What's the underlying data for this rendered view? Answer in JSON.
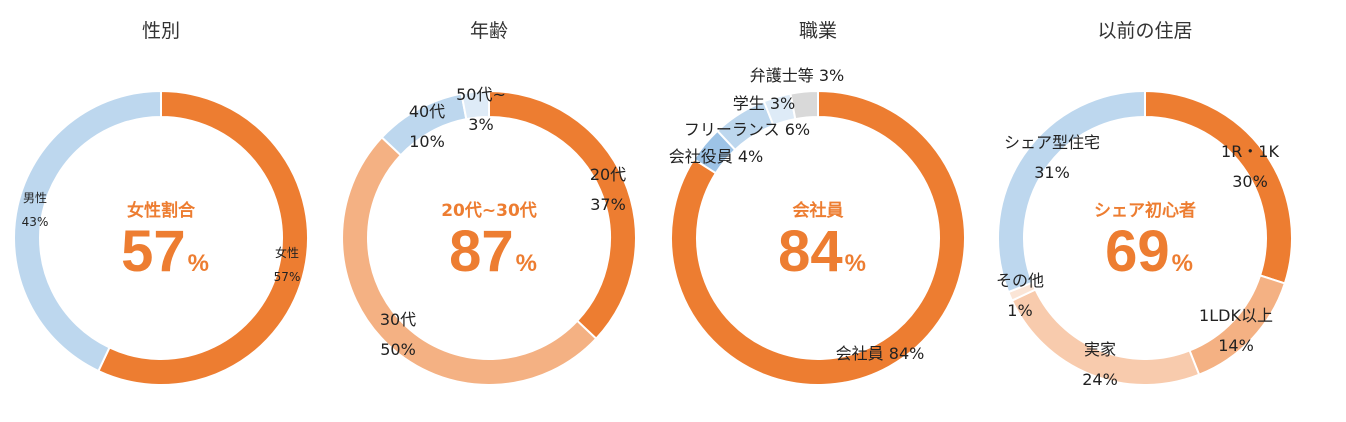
{
  "colors": {
    "accent": "#ED7D31"
  },
  "chart_data": [
    {
      "type": "pie",
      "title": "性別",
      "center_label": "女性割合",
      "center_value": "57",
      "center_unit": "%",
      "slices": [
        {
          "name": "女性",
          "value": 57,
          "color": "#ED7D31"
        },
        {
          "name": "男性",
          "value": 43,
          "color": "#BDD7EE"
        }
      ]
    },
    {
      "type": "pie",
      "title": "年齢",
      "center_label": "20代~30代",
      "center_value": "87",
      "center_unit": "%",
      "slices": [
        {
          "name": "20代",
          "value": 37,
          "color": "#ED7D31"
        },
        {
          "name": "30代",
          "value": 50,
          "color": "#F4B183"
        },
        {
          "name": "40代",
          "value": 10,
          "color": "#BDD7EE"
        },
        {
          "name": "50代~",
          "value": 3,
          "color": "#DEEBF7"
        }
      ]
    },
    {
      "type": "pie",
      "title": "職業",
      "center_label": "会社員",
      "center_value": "84",
      "center_unit": "%",
      "slices": [
        {
          "name": "会社員",
          "value": 84,
          "color": "#ED7D31"
        },
        {
          "name": "会社役員",
          "value": 4,
          "color": "#9DC3E6"
        },
        {
          "name": "フリーランス",
          "value": 6,
          "color": "#BDD7EE"
        },
        {
          "name": "学生",
          "value": 3,
          "color": "#DEEBF7"
        },
        {
          "name": "弁護士等",
          "value": 3,
          "color": "#D9D9D9"
        }
      ]
    },
    {
      "type": "pie",
      "title": "以前の住居",
      "center_label": "シェア初心者",
      "center_value": "69",
      "center_unit": "%",
      "slices": [
        {
          "name": "1R・1K",
          "value": 30,
          "color": "#ED7D31"
        },
        {
          "name": "1LDK以上",
          "value": 14,
          "color": "#F4B183"
        },
        {
          "name": "実家",
          "value": 24,
          "color": "#F8CBAD"
        },
        {
          "name": "その他",
          "value": 1,
          "color": "#FBE5D6"
        },
        {
          "name": "シェア型住宅",
          "value": 31,
          "color": "#BDD7EE"
        }
      ]
    }
  ]
}
